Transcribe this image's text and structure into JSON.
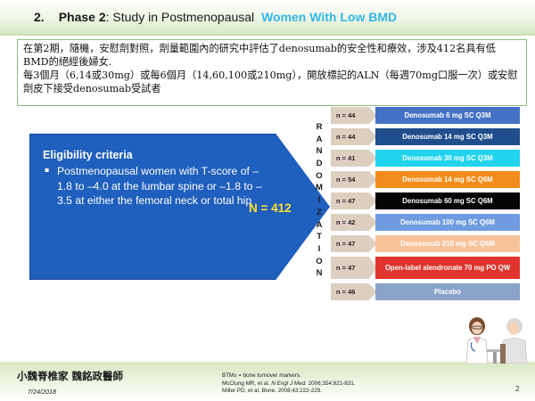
{
  "header": {
    "number": "2.",
    "phase": "Phase 2",
    "colon_text": ": Study in Postmenopausal",
    "highlight": "Women With Low BMD"
  },
  "description": {
    "paragraph1": "在第2期，隨機，安慰劑對照，劑量範圍內的研究中評估了denosumab的安全性和療效，涉及412名具有低BMD的絕經後婦女.",
    "paragraph2": "每3個月（6,14或30mg）或每6個月（14,60,100或210mg），開放標記的ALN（每週70mg口服一次）或安慰劑皮下接受denosumab受試者"
  },
  "eligibility": {
    "title": "Eligibility criteria",
    "bullet": "▪",
    "text": "Postmenopausal women with T-score of –1.8 to –4.0 at the lumbar spine or –1.8 to –3.5 at either the femoral neck or total hip",
    "total": "N = 412"
  },
  "randomization_letters": [
    "R",
    "A",
    "N",
    "D",
    "O",
    "M",
    "I",
    "Z",
    "A",
    "T",
    "I",
    "O",
    "N"
  ],
  "arms": [
    {
      "n": "n = 44",
      "label": "Denosumab 6 mg SC Q3M",
      "color": "#4472c4"
    },
    {
      "n": "n = 44",
      "label": "Denosumab 14 mg SC Q3M",
      "color": "#1f4e8c"
    },
    {
      "n": "n = 41",
      "label": "Denosumab 30 mg SC Q3M",
      "color": "#22d3ee"
    },
    {
      "n": "n = 54",
      "label": "Denosumab 14 mg SC Q6M",
      "color": "#f28c1c"
    },
    {
      "n": "n = 47",
      "label": "Denosumab 60 mg SC Q6M",
      "color": "#050505"
    },
    {
      "n": "n = 42",
      "label": "Denosumab 100 mg SC Q6M",
      "color": "#6f9ce0"
    },
    {
      "n": "n = 47",
      "label": "Denosumab 210 mg SC Q6M",
      "color": "#f7c39a"
    },
    {
      "n": "n = 47",
      "label": "Open-label alendronate 70 mg PO QW",
      "color": "#e0342c"
    },
    {
      "n": "n = 46",
      "label": "Placebo",
      "color": "#8aa3c8"
    }
  ],
  "footer": {
    "author": "小魏脊椎家 魏銘政醫師",
    "date": "7/24/2018",
    "ref1": "BTMs = bone turnover markers.",
    "ref2_pre": "McClung MR, et al. ",
    "ref2_journal": "N Engl J Med.",
    "ref2_post": " 2006;354:821-831.",
    "ref3_pre": "Miller PD, et al. ",
    "ref3_journal": "Bone.",
    "ref3_post": " 2008;43:222-229.",
    "page": "2"
  }
}
